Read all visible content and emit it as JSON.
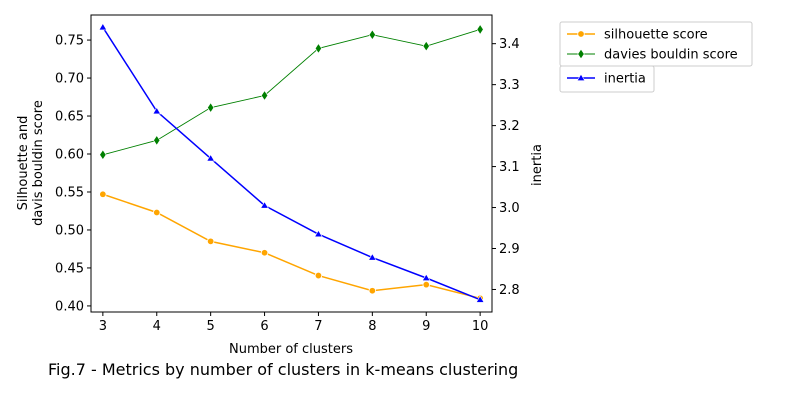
{
  "caption": "Fig.7 - Metrics by number of clusters in k-means clustering",
  "chart_data": {
    "type": "line",
    "title": "",
    "xlabel": "Number of clusters",
    "ylabel_line1": "Silhouette and",
    "ylabel_line2": "davis bouldin score",
    "y2label": "inertia",
    "x": [
      3,
      4,
      5,
      6,
      7,
      8,
      9,
      10
    ],
    "ylim": [
      0.392,
      0.783
    ],
    "y2lim": [
      2.745,
      3.47
    ],
    "yticks": [
      "0.40",
      "0.45",
      "0.50",
      "0.55",
      "0.60",
      "0.65",
      "0.70",
      "0.75"
    ],
    "y2ticks": [
      "2.8",
      "2.9",
      "3.0",
      "3.1",
      "3.2",
      "3.3",
      "3.4"
    ],
    "legend_position": "outside-top-right",
    "series": [
      {
        "name": "silhouette score",
        "axis": "left",
        "marker": "circle",
        "color": "#ffa500",
        "values": [
          0.547,
          0.523,
          0.485,
          0.47,
          0.44,
          0.42,
          0.428,
          0.41
        ]
      },
      {
        "name": "davies bouldin score",
        "axis": "left",
        "marker": "diamond",
        "color": "#008000",
        "values": [
          0.599,
          0.618,
          0.661,
          0.677,
          0.739,
          0.757,
          0.742,
          0.764
        ]
      },
      {
        "name": "inertia",
        "axis": "right",
        "marker": "triangle",
        "color": "#0000ff",
        "values": [
          3.44,
          3.235,
          3.12,
          3.005,
          2.935,
          2.878,
          2.828,
          2.775
        ]
      }
    ]
  }
}
